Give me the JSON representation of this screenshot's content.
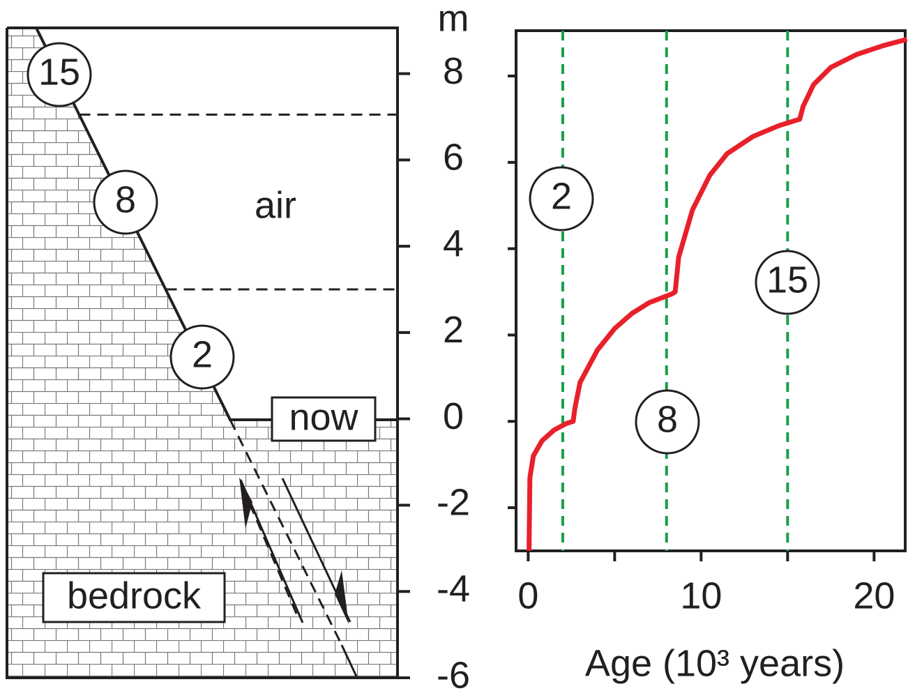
{
  "chart_data": [
    {
      "type": "profile",
      "ylabel": "m",
      "ylim": [
        -6,
        9.06
      ],
      "yticks": [
        -6,
        -4,
        -2,
        0,
        2,
        4,
        6,
        8
      ],
      "markers": [
        15,
        8,
        2
      ],
      "levels": [
        7.05,
        3.0
      ],
      "labels": {
        "air": "air",
        "now": "now",
        "bedrock": "bedrock"
      }
    },
    {
      "type": "line",
      "xlabel": "Age (10³ years)",
      "xlim": [
        -0.7,
        21.8
      ],
      "xticks": [
        0,
        10,
        20
      ],
      "xminorticks": [
        5,
        15
      ],
      "ylim": [
        -3,
        9.05
      ],
      "ymarks": [
        -2,
        0,
        2,
        4,
        6,
        8
      ],
      "vlines": [
        2,
        8,
        15
      ],
      "vline_color": "#1a9e4a",
      "series": [
        {
          "color": "#e8202a",
          "x": [
            0.05,
            0.1,
            0.3,
            0.8,
            1.5,
            2.2,
            2.6,
            2.7,
            3,
            4,
            5,
            6,
            7,
            8.3,
            8.5,
            8.7,
            9.5,
            10.5,
            11.5,
            13,
            14.5,
            15.7,
            15.9,
            16.5,
            17.5,
            19,
            20.5,
            21.9
          ],
          "values": [
            -3,
            -1.3,
            -0.8,
            -0.45,
            -0.2,
            -0.05,
            0,
            0.3,
            0.9,
            1.65,
            2.15,
            2.5,
            2.75,
            2.95,
            3.0,
            3.8,
            4.9,
            5.7,
            6.2,
            6.6,
            6.85,
            7.0,
            7.3,
            7.8,
            8.2,
            8.5,
            8.7,
            8.85
          ]
        }
      ]
    }
  ]
}
